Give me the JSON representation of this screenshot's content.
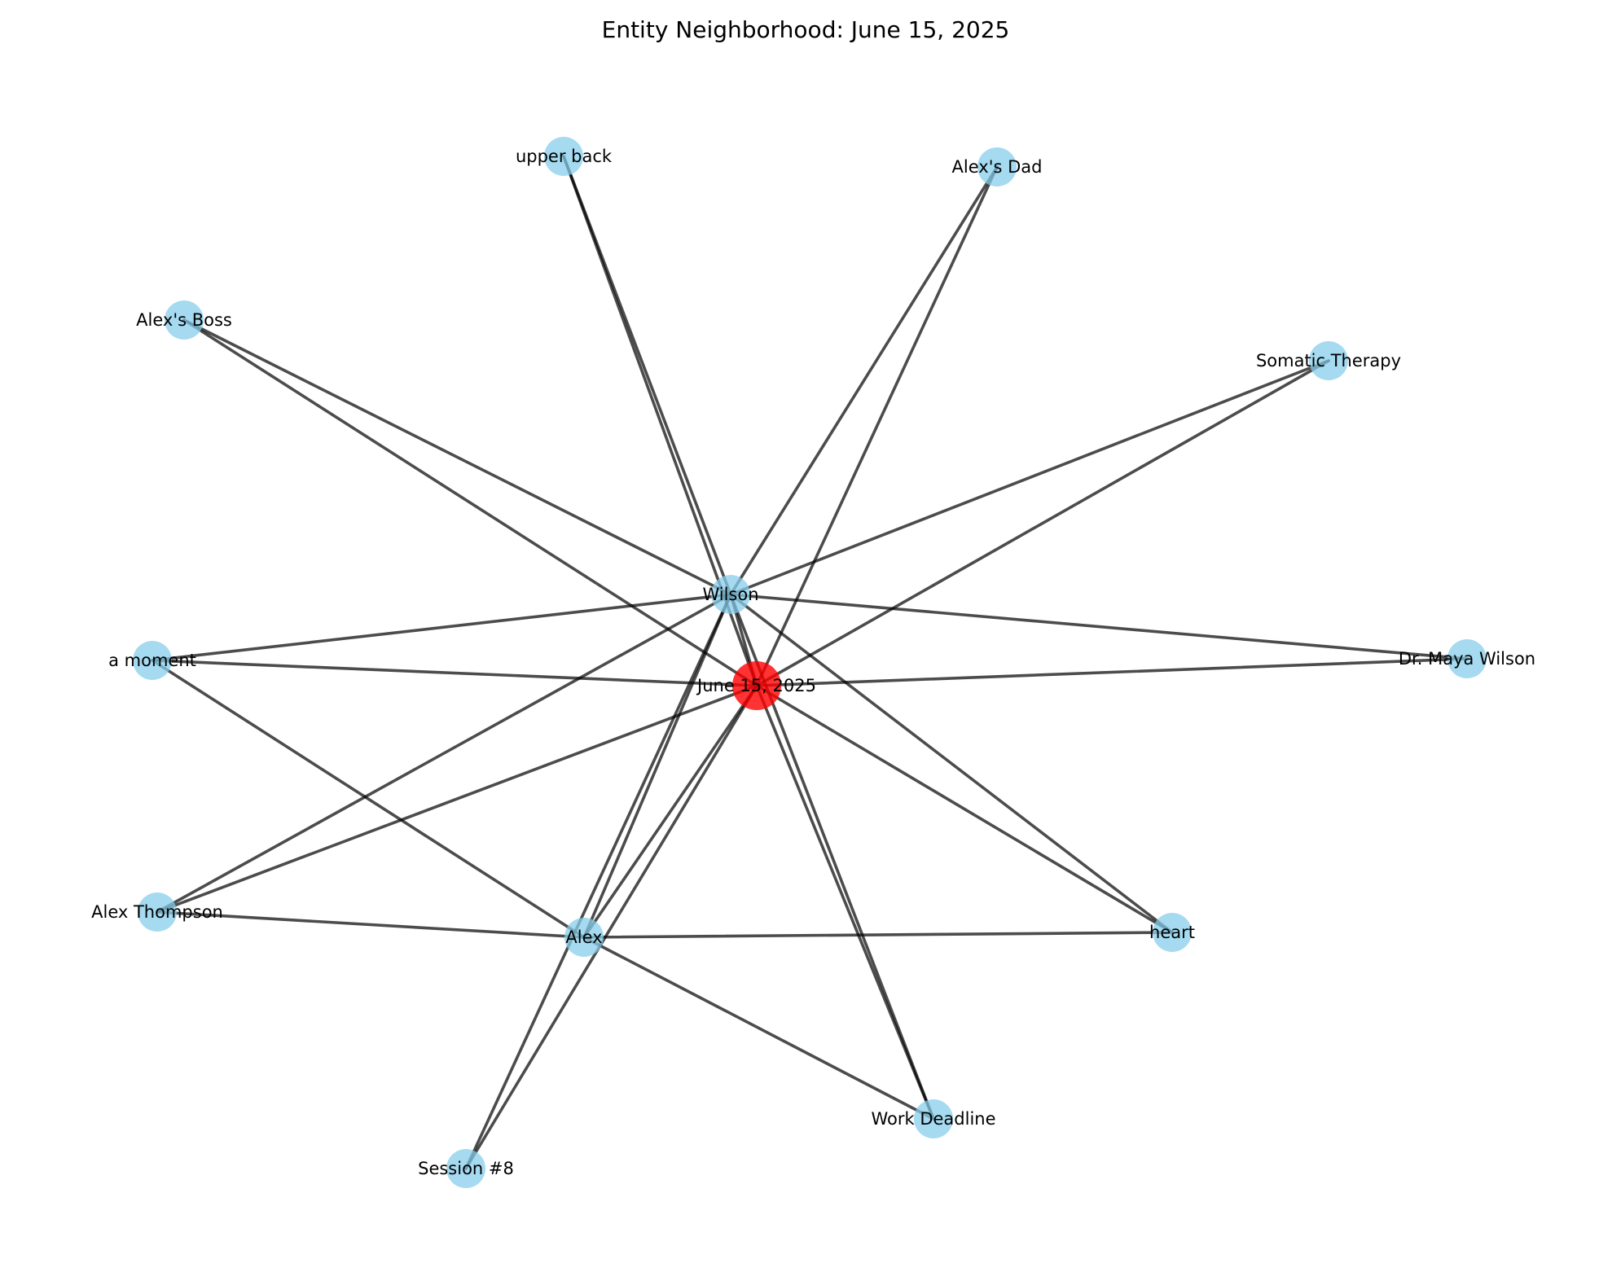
{
  "title": "Entity Neighborhood: June 15, 2025",
  "colors": {
    "center_node": "#ff0000",
    "entity_node": "#87ceeb",
    "edge": "#000000"
  },
  "nodes": [
    {
      "id": "june15",
      "label": "June 15, 2025",
      "kind": "center"
    },
    {
      "id": "wilson",
      "label": "Wilson",
      "kind": "entity"
    },
    {
      "id": "alex",
      "label": "Alex",
      "kind": "entity"
    },
    {
      "id": "upperback",
      "label": "upper back",
      "kind": "entity"
    },
    {
      "id": "alexsdad",
      "label": "Alex's Dad",
      "kind": "entity"
    },
    {
      "id": "alexsboss",
      "label": "Alex's Boss",
      "kind": "entity"
    },
    {
      "id": "somatic",
      "label": "Somatic Therapy",
      "kind": "entity"
    },
    {
      "id": "amoment",
      "label": "a moment",
      "kind": "entity"
    },
    {
      "id": "drmaya",
      "label": "Dr. Maya Wilson",
      "kind": "entity"
    },
    {
      "id": "alexthompson",
      "label": "Alex Thompson",
      "kind": "entity"
    },
    {
      "id": "heart",
      "label": "heart",
      "kind": "entity"
    },
    {
      "id": "workdeadline",
      "label": "Work Deadline",
      "kind": "entity"
    },
    {
      "id": "session8",
      "label": "Session #8",
      "kind": "entity"
    }
  ],
  "edges": [
    [
      "june15",
      "wilson"
    ],
    [
      "june15",
      "alex"
    ],
    [
      "june15",
      "upperback"
    ],
    [
      "june15",
      "alexsdad"
    ],
    [
      "june15",
      "alexsboss"
    ],
    [
      "june15",
      "somatic"
    ],
    [
      "june15",
      "amoment"
    ],
    [
      "june15",
      "drmaya"
    ],
    [
      "june15",
      "alexthompson"
    ],
    [
      "june15",
      "heart"
    ],
    [
      "june15",
      "workdeadline"
    ],
    [
      "june15",
      "session8"
    ],
    [
      "wilson",
      "alex"
    ],
    [
      "wilson",
      "upperback"
    ],
    [
      "wilson",
      "alexsdad"
    ],
    [
      "wilson",
      "alexsboss"
    ],
    [
      "wilson",
      "somatic"
    ],
    [
      "wilson",
      "amoment"
    ],
    [
      "wilson",
      "drmaya"
    ],
    [
      "wilson",
      "alexthompson"
    ],
    [
      "wilson",
      "heart"
    ],
    [
      "wilson",
      "workdeadline"
    ],
    [
      "wilson",
      "session8"
    ],
    [
      "alex",
      "amoment"
    ],
    [
      "alex",
      "alexthompson"
    ],
    [
      "alex",
      "heart"
    ],
    [
      "alex",
      "workdeadline"
    ]
  ]
}
